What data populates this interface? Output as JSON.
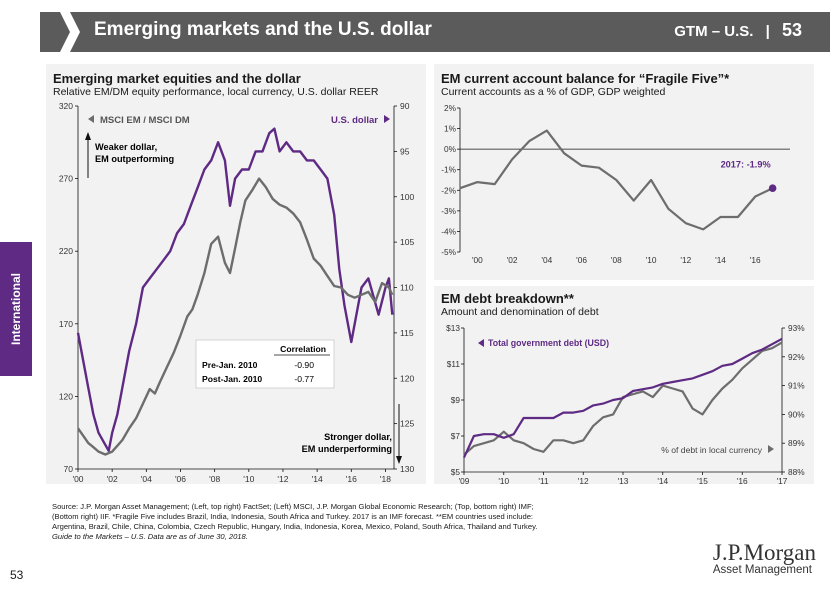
{
  "header": {
    "title": "Emerging markets and the U.S. dollar",
    "section": "GTM – U.S.",
    "page": "53"
  },
  "side_tab": "International",
  "page_number": "53",
  "logo": {
    "line1": "J.P.Morgan",
    "line2": "Asset Management"
  },
  "colors": {
    "purple": "#5e2a84",
    "gray": "#6d6d6d",
    "panel": "#f2f2f2",
    "header": "#5b5b5b"
  },
  "source_lines": [
    "Source: J.P. Morgan Asset Management; (Left, top right) FactSet; (Left) MSCI, J.P. Morgan Global Economic Research; (Top, bottom right) IMF;",
    "(Bottom right) IIF. *Fragile Five includes Brazil, India, Indonesia, South Africa and Turkey. 2017 is an IMF forecast. **EM countries used include:",
    "Argentina, Brazil, Chile, China, Colombia, Czech Republic, Hungary, India, Indonesia, Korea, Mexico, Poland, South Africa, Thailand and Turkey.",
    "Guide to the Markets – U.S. Data are as of June 30, 2018."
  ],
  "left_panel": {
    "title": "Emerging market equities and the dollar",
    "subtitle": "Relative EM/DM equity performance, local currency, U.S. dollar REER",
    "legend_left": "MSCI EM / MSCI DM",
    "legend_right": "U.S. dollar",
    "annotation_top": [
      "Weaker dollar,",
      "EM outperforming"
    ],
    "annotation_bottom": [
      "Stronger dollar,",
      "EM underperforming"
    ],
    "correlation_table": {
      "header": "Correlation",
      "rows": [
        {
          "label": "Pre-Jan. 2010",
          "value": "-0.90"
        },
        {
          "label": "Post-Jan. 2010",
          "value": "-0.77"
        }
      ]
    }
  },
  "chart_data": [
    {
      "type": "line",
      "title": "Emerging market equities and the dollar",
      "x_tick_labels": [
        "'00",
        "'02",
        "'04",
        "'06",
        "'08",
        "'10",
        "'12",
        "'14",
        "'16",
        "'18"
      ],
      "x_range": [
        2000,
        2018.5
      ],
      "y_left": {
        "ticks": [
          "320",
          "270",
          "220",
          "170",
          "120",
          "70"
        ],
        "range": [
          70,
          320
        ]
      },
      "y_right": {
        "ticks": [
          "90",
          "95",
          "100",
          "105",
          "110",
          "115",
          "120",
          "125",
          "130"
        ],
        "range": [
          90,
          130
        ],
        "inverted": true
      },
      "series": [
        {
          "name": "MSCI EM / MSCI DM",
          "axis": "left",
          "color": "#6d6d6d",
          "x": [
            2000,
            2000.3,
            2000.6,
            2000.9,
            2001.2,
            2001.6,
            2002,
            2002.3,
            2002.6,
            2003,
            2003.4,
            2003.8,
            2004.2,
            2004.5,
            2004.8,
            2005.2,
            2005.6,
            2006,
            2006.4,
            2006.7,
            2007,
            2007.4,
            2007.8,
            2008.2,
            2008.6,
            2008.9,
            2009.2,
            2009.5,
            2009.8,
            2010.2,
            2010.6,
            2011,
            2011.4,
            2011.8,
            2012.2,
            2012.6,
            2013,
            2013.4,
            2013.8,
            2014.2,
            2014.6,
            2015,
            2015.4,
            2015.8,
            2016.2,
            2016.6,
            2017,
            2017.4,
            2017.8,
            2018.2,
            2018.4
          ],
          "y": [
            98,
            93,
            88,
            85,
            82,
            80,
            82,
            86,
            90,
            98,
            105,
            115,
            125,
            122,
            130,
            140,
            150,
            162,
            175,
            180,
            190,
            205,
            225,
            230,
            212,
            205,
            222,
            240,
            255,
            262,
            270,
            264,
            256,
            252,
            250,
            246,
            240,
            228,
            215,
            210,
            203,
            196,
            195,
            190,
            188,
            190,
            192,
            185,
            198,
            195,
            190
          ]
        },
        {
          "name": "U.S. dollar",
          "axis": "right",
          "color": "#5e2a84",
          "x": [
            2000,
            2000.3,
            2000.6,
            2000.9,
            2001.2,
            2001.5,
            2001.8,
            2002,
            2002.3,
            2002.6,
            2003,
            2003.4,
            2003.8,
            2004.2,
            2004.6,
            2005,
            2005.4,
            2005.8,
            2006.2,
            2006.6,
            2007,
            2007.4,
            2007.8,
            2008.2,
            2008.6,
            2008.9,
            2009.2,
            2009.6,
            2010,
            2010.4,
            2010.8,
            2011.2,
            2011.5,
            2011.8,
            2012.2,
            2012.6,
            2013,
            2013.4,
            2013.8,
            2014.2,
            2014.6,
            2015,
            2015.3,
            2015.6,
            2016,
            2016.3,
            2016.6,
            2017,
            2017.3,
            2017.6,
            2018,
            2018.2,
            2018.4
          ],
          "y": [
            115,
            118,
            121,
            124,
            126,
            127,
            128,
            126,
            124,
            121,
            117,
            114,
            110,
            109,
            108,
            107,
            106,
            104,
            103,
            101,
            99,
            97,
            96,
            94,
            96,
            101,
            98,
            97,
            97,
            95,
            95,
            93,
            92.5,
            95,
            94,
            95,
            95,
            96,
            96,
            97,
            98,
            102,
            108,
            112,
            116,
            113,
            110,
            109,
            111,
            113,
            110,
            109,
            113
          ]
        }
      ]
    },
    {
      "type": "line",
      "title": "EM current account balance for “Fragile Five”*",
      "subtitle": "Current accounts as a % of GDP, GDP weighted",
      "x_tick_labels": [
        "'00",
        "'02",
        "'04",
        "'06",
        "'08",
        "'10",
        "'12",
        "'14",
        "'16"
      ],
      "y_ticks": [
        "2%",
        "1%",
        "0%",
        "-1%",
        "-2%",
        "-3%",
        "-4%",
        "-5%"
      ],
      "x_range": [
        1999,
        2018
      ],
      "y_range": [
        -5,
        2
      ],
      "annotation": "2017: -1.9%",
      "series": [
        {
          "name": "Current account",
          "color": "#6d6d6d",
          "x": [
            1999,
            2000,
            2001,
            2002,
            2003,
            2004,
            2005,
            2006,
            2007,
            2008,
            2009,
            2010,
            2011,
            2012,
            2013,
            2014,
            2015,
            2016,
            2017
          ],
          "y": [
            -1.9,
            -1.6,
            -1.7,
            -0.5,
            0.4,
            0.9,
            -0.2,
            -0.8,
            -0.9,
            -1.5,
            -2.5,
            -1.5,
            -2.9,
            -3.6,
            -3.9,
            -3.3,
            -3.3,
            -2.3,
            -1.9
          ]
        }
      ]
    },
    {
      "type": "line",
      "title": "EM debt breakdown**",
      "subtitle": "Amount and denomination of debt",
      "x_tick_labels": [
        "'09",
        "'10",
        "'11",
        "'12",
        "'13",
        "'14",
        "'15",
        "'16",
        "'17"
      ],
      "x_range": [
        2009,
        2017
      ],
      "y_left": {
        "ticks": [
          "$13",
          "$11",
          "$9",
          "$7",
          "$5"
        ],
        "range": [
          5,
          13
        ]
      },
      "y_right": {
        "ticks": [
          "93%",
          "92%",
          "91%",
          "90%",
          "89%",
          "88%"
        ],
        "range": [
          88,
          93
        ]
      },
      "series": [
        {
          "name": "Total government debt (USD)",
          "axis": "left",
          "color": "#5e2a84",
          "x": [
            2009,
            2009.25,
            2009.5,
            2009.75,
            2010,
            2010.25,
            2010.5,
            2010.75,
            2011,
            2011.25,
            2011.5,
            2011.75,
            2012,
            2012.25,
            2012.5,
            2012.75,
            2013,
            2013.25,
            2013.5,
            2013.75,
            2014,
            2014.25,
            2014.5,
            2014.75,
            2015,
            2015.25,
            2015.5,
            2015.75,
            2016,
            2016.25,
            2016.5,
            2016.75,
            2017
          ],
          "y": [
            5.8,
            7.0,
            7.1,
            7.1,
            6.9,
            7.1,
            8.0,
            8.0,
            8.0,
            8.0,
            8.3,
            8.3,
            8.4,
            8.7,
            8.8,
            9.0,
            9.1,
            9.5,
            9.6,
            9.7,
            9.9,
            10.0,
            10.1,
            10.2,
            10.4,
            10.6,
            10.9,
            11.0,
            11.3,
            11.6,
            11.8,
            12.1,
            12.4
          ]
        },
        {
          "name": "% of debt in local currency",
          "axis": "right",
          "color": "#6d6d6d",
          "x": [
            2009,
            2009.25,
            2009.5,
            2009.75,
            2010,
            2010.25,
            2010.5,
            2010.75,
            2011,
            2011.25,
            2011.5,
            2011.75,
            2012,
            2012.25,
            2012.5,
            2012.75,
            2013,
            2013.25,
            2013.5,
            2013.75,
            2014,
            2014.25,
            2014.5,
            2014.75,
            2015,
            2015.25,
            2015.5,
            2015.75,
            2016,
            2016.25,
            2016.5,
            2016.75,
            2017
          ],
          "y": [
            88.6,
            88.9,
            89.0,
            89.1,
            89.4,
            89.1,
            89.0,
            88.8,
            88.7,
            89.1,
            89.1,
            89.0,
            89.1,
            89.6,
            89.9,
            90.0,
            90.6,
            90.7,
            90.8,
            90.6,
            91.0,
            90.9,
            90.8,
            90.2,
            90.0,
            90.5,
            90.9,
            91.2,
            91.6,
            91.9,
            92.2,
            92.3,
            92.5
          ]
        }
      ]
    }
  ]
}
